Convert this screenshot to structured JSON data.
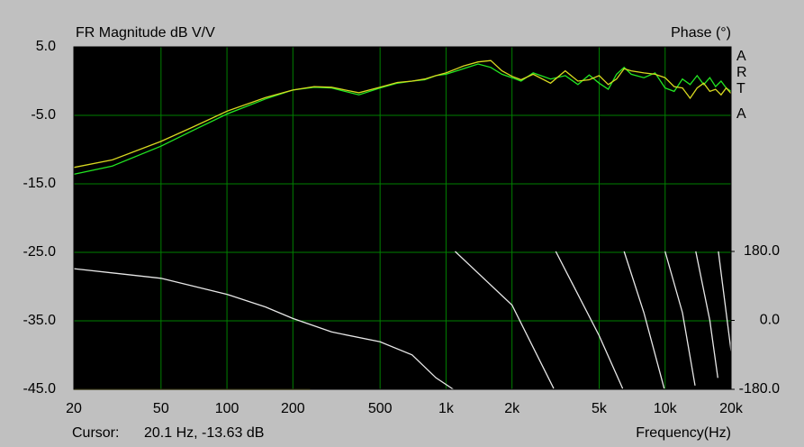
{
  "chart_data": {
    "type": "line",
    "title": "FR Magnitude dB V/V",
    "y2_title": "Phase (°)",
    "watermark": [
      "A",
      "R",
      "T",
      "A"
    ],
    "xlabel": "Frequency(Hz)",
    "cursor_label": "Cursor:",
    "cursor_value": "20.1 Hz, -13.63 dB",
    "xscale": "log",
    "grid": true,
    "xlim": [
      20,
      20000
    ],
    "xticks": [
      20,
      50,
      100,
      200,
      500,
      {
        "value": 1000,
        "label": "1k"
      },
      {
        "value": 2000,
        "label": "2k"
      },
      {
        "value": 5000,
        "label": "5k"
      },
      {
        "value": 10000,
        "label": "10k"
      },
      {
        "value": 20000,
        "label": "20k"
      }
    ],
    "ylim": [
      -45,
      5
    ],
    "yticks": [
      {
        "value": -45,
        "label": "-45.0"
      },
      {
        "value": -35,
        "label": "-35.0"
      },
      {
        "value": -25,
        "label": "-25.0"
      },
      {
        "value": -15,
        "label": "-15.0"
      },
      {
        "value": -5,
        "label": "-5.0"
      },
      {
        "value": 5,
        "label": "5.0"
      }
    ],
    "y2lim": [
      -180,
      180
    ],
    "y2ticks": [
      {
        "value": -180,
        "label": "-180.0"
      },
      {
        "value": 0,
        "label": "0.0"
      },
      {
        "value": 180,
        "label": "180.0"
      }
    ],
    "series": [
      {
        "color": "#22e622",
        "x": [
          20,
          30,
          50,
          70,
          100,
          150,
          200,
          250,
          300,
          400,
          500,
          600,
          700,
          800,
          900,
          1000,
          1200,
          1400,
          1600,
          1800,
          2000,
          2200,
          2500,
          3000,
          3500,
          4000,
          4500,
          5000,
          5500,
          6000,
          6500,
          7000,
          8000,
          9000,
          10000,
          11000,
          12000,
          13000,
          14000,
          15000,
          16000,
          17000,
          18000,
          19000,
          20000
        ],
        "values": [
          -13.6,
          -12.4,
          -9.5,
          -7.2,
          -4.8,
          -2.6,
          -1.3,
          -0.9,
          -1.0,
          -2.0,
          -1.0,
          -0.3,
          0.0,
          0.2,
          0.8,
          1.0,
          1.8,
          2.5,
          2.0,
          1.0,
          0.5,
          0.0,
          1.2,
          0.3,
          0.8,
          -0.5,
          0.9,
          -0.3,
          -1.2,
          1.0,
          2.0,
          1.0,
          0.5,
          1.2,
          -1.0,
          -1.5,
          0.3,
          -0.5,
          0.8,
          -0.5,
          0.5,
          -0.8,
          0.0,
          -1.0,
          -1.5
        ]
      },
      {
        "color": "#d8d820",
        "x": [
          20,
          30,
          50,
          70,
          100,
          150,
          200,
          250,
          300,
          400,
          500,
          600,
          700,
          800,
          900,
          1000,
          1200,
          1400,
          1600,
          1800,
          2000,
          2200,
          2500,
          3000,
          3500,
          4000,
          4500,
          5000,
          5500,
          6000,
          6500,
          7000,
          8000,
          9000,
          10000,
          11000,
          12000,
          13000,
          14000,
          15000,
          16000,
          17000,
          18000,
          19000,
          20000
        ],
        "values": [
          -12.6,
          -11.5,
          -8.8,
          -6.7,
          -4.4,
          -2.4,
          -1.3,
          -0.8,
          -0.9,
          -1.7,
          -0.9,
          -0.2,
          0.0,
          0.3,
          0.8,
          1.2,
          2.2,
          2.8,
          3.0,
          1.5,
          0.7,
          0.2,
          1.0,
          -0.3,
          1.5,
          0.0,
          0.2,
          0.8,
          -0.5,
          0.3,
          1.8,
          1.5,
          1.2,
          1.0,
          0.5,
          -0.8,
          -1.0,
          -2.5,
          -1.0,
          -0.3,
          -1.5,
          -1.2,
          -2.0,
          -1.0,
          -1.8
        ]
      },
      {
        "color": "#e8e8e8",
        "axis": "y2",
        "x": [
          20,
          50,
          100,
          150,
          200,
          300,
          500,
          700,
          900,
          1080,
          1090,
          1100,
          2000,
          3100,
          3150,
          3170,
          5000,
          6400,
          6450,
          6500,
          8000,
          9900,
          9950,
          10000,
          12000,
          13700,
          13750,
          13800,
          16000,
          17400,
          17450,
          17500,
          20000
        ],
        "values": [
          135,
          110,
          68,
          35,
          5,
          -30,
          -56,
          -90,
          -150,
          -180,
          null,
          180,
          40,
          -178,
          null,
          180,
          -40,
          -178,
          null,
          180,
          20,
          -178,
          null,
          180,
          20,
          -170,
          null,
          180,
          0,
          -150,
          null,
          180,
          -80
        ]
      },
      {
        "color": "#c8c020",
        "x": [
          20,
          240
        ],
        "values": [
          -45,
          -45
        ]
      }
    ]
  }
}
